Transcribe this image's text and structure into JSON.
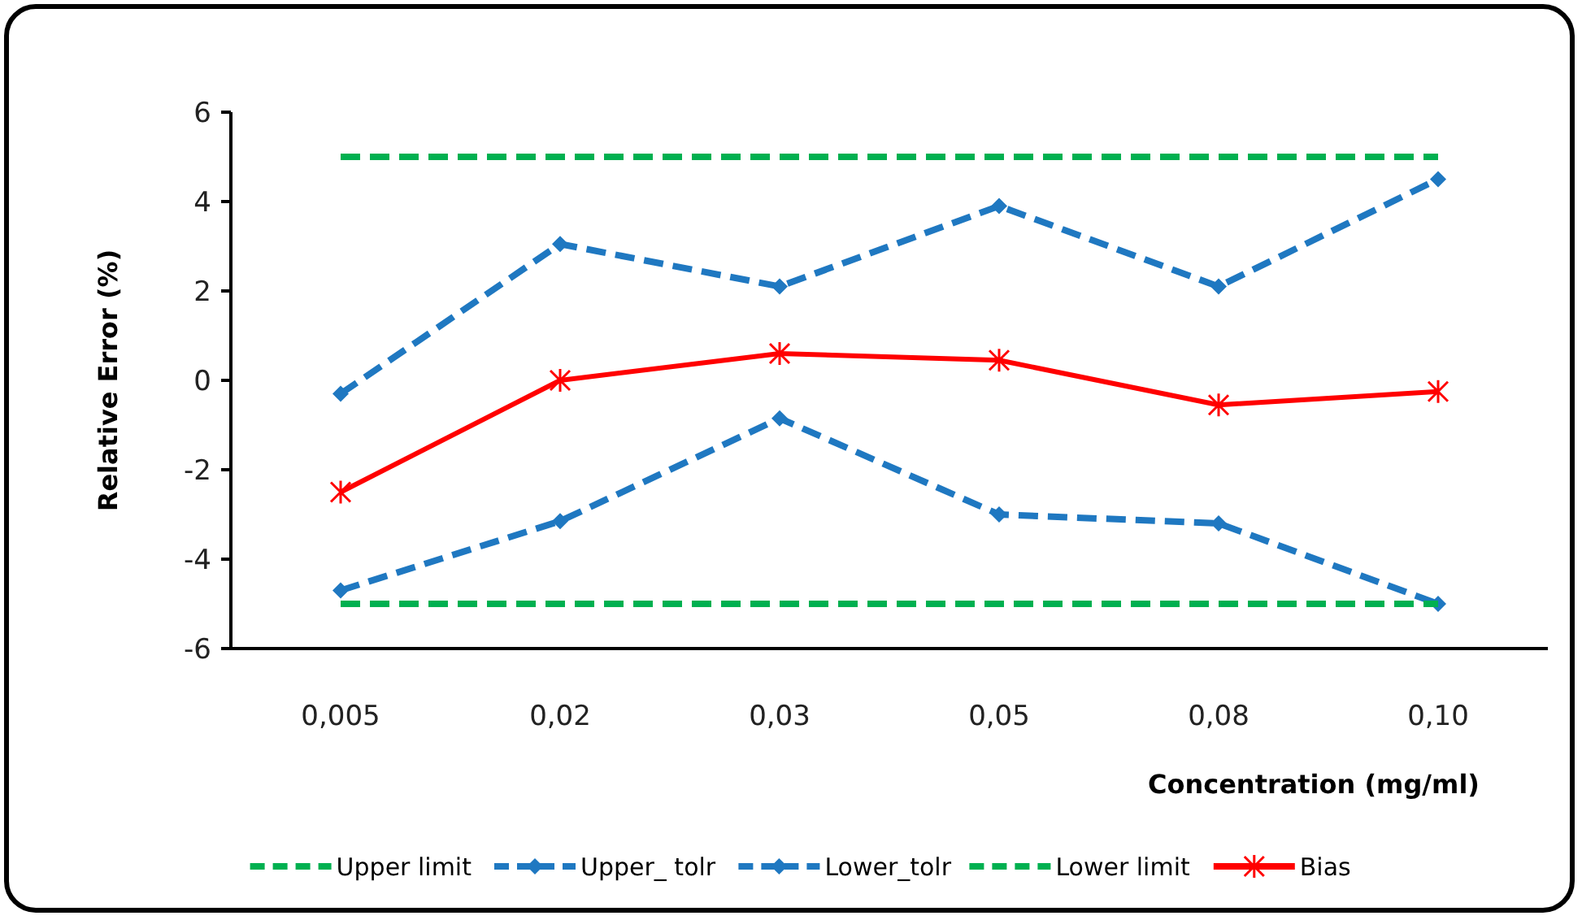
{
  "chart_data": {
    "type": "line",
    "xlabel": "Concentration  (mg/ml)",
    "ylabel": "Relative Error (%)",
    "categories": [
      "0,005",
      "0,02",
      "0,03",
      "0,05",
      "0,08",
      "0,10"
    ],
    "ylim": [
      -6,
      6
    ],
    "yticks": [
      -6,
      -4,
      -2,
      0,
      2,
      4,
      6
    ],
    "grid": false,
    "legend": "bottom",
    "series": [
      {
        "name": "Upper limit",
        "color": "#00b050",
        "line_style": "dashed",
        "marker": "none",
        "values": [
          5,
          5,
          5,
          5,
          5,
          5
        ]
      },
      {
        "name": "Upper_ tolr",
        "color": "#1f78c1",
        "line_style": "dashed",
        "marker": "diamond",
        "values": [
          -0.3,
          3.05,
          2.1,
          3.9,
          2.1,
          4.5
        ]
      },
      {
        "name": "Lower_tolr",
        "color": "#1f78c1",
        "line_style": "dashed",
        "marker": "diamond",
        "values": [
          -4.7,
          -3.15,
          -0.85,
          -3.0,
          -3.2,
          -5.0
        ]
      },
      {
        "name": "Lower limit",
        "color": "#00b050",
        "line_style": "dashed",
        "marker": "none",
        "values": [
          -5,
          -5,
          -5,
          -5,
          -5,
          -5
        ]
      },
      {
        "name": "Bias",
        "color": "#ff0000",
        "line_style": "solid",
        "marker": "cross",
        "values": [
          -2.5,
          0,
          0.6,
          0.45,
          -0.55,
          -0.25
        ]
      }
    ]
  }
}
